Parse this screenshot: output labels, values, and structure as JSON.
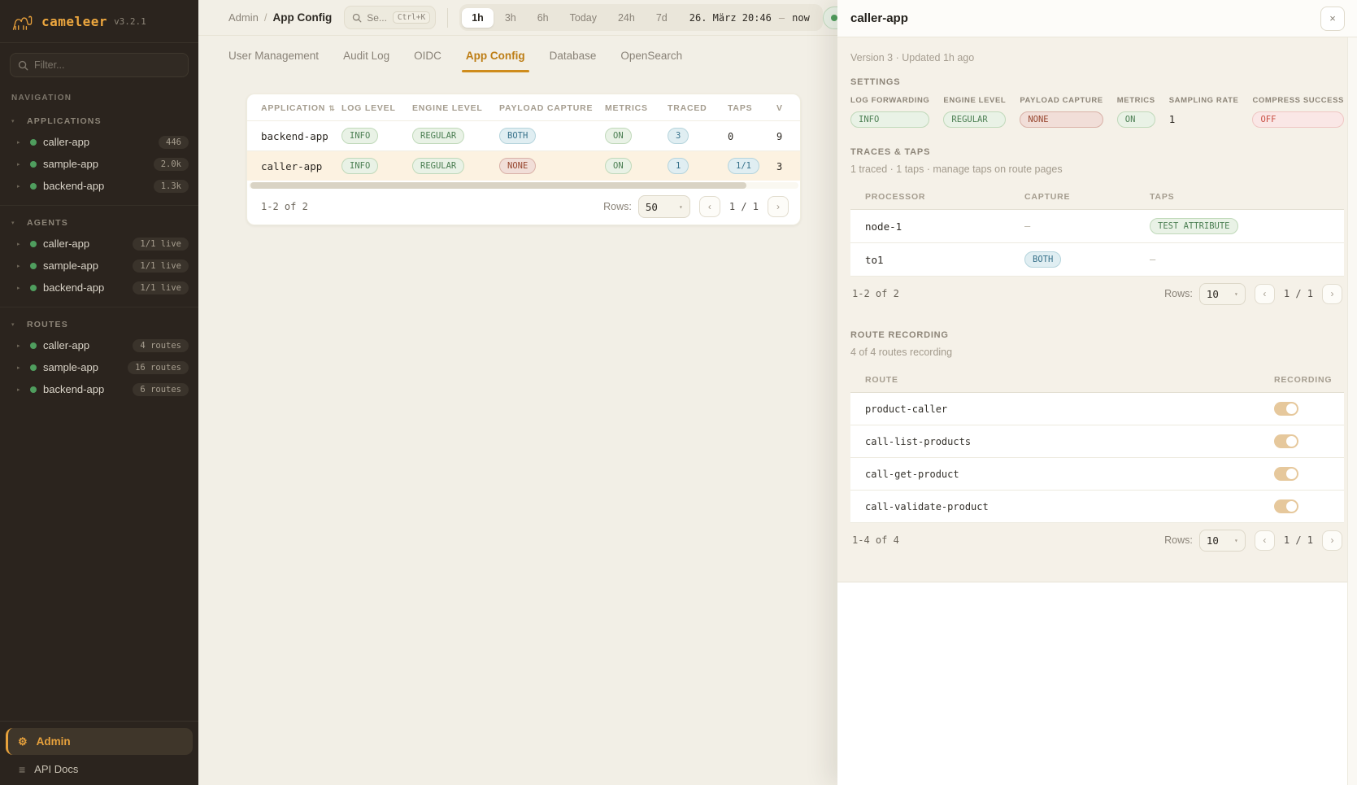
{
  "app": {
    "name": "cameleer",
    "version": "v3.2.1"
  },
  "icons": {
    "caret_down": "▾",
    "caret_right": "▸",
    "sort": "⇅",
    "gear": "⚙",
    "menu": "≡",
    "close": "×",
    "prev": "‹",
    "next": "›",
    "select_caret": "▾"
  },
  "sidebar": {
    "filter_placeholder": "Filter...",
    "nav_label": "NAVIGATION",
    "sections": [
      {
        "title": "APPLICATIONS",
        "items": [
          {
            "name": "caller-app",
            "badge": "446"
          },
          {
            "name": "sample-app",
            "badge": "2.0k"
          },
          {
            "name": "backend-app",
            "badge": "1.3k"
          }
        ]
      },
      {
        "title": "AGENTS",
        "items": [
          {
            "name": "caller-app",
            "badge": "1/1 live"
          },
          {
            "name": "sample-app",
            "badge": "1/1 live"
          },
          {
            "name": "backend-app",
            "badge": "1/1 live"
          }
        ]
      },
      {
        "title": "ROUTES",
        "items": [
          {
            "name": "caller-app",
            "badge": "4 routes"
          },
          {
            "name": "sample-app",
            "badge": "16 routes"
          },
          {
            "name": "backend-app",
            "badge": "6 routes"
          }
        ]
      }
    ],
    "footer": [
      {
        "label": "Admin",
        "active": true
      },
      {
        "label": "API Docs",
        "active": false
      }
    ]
  },
  "header": {
    "breadcrumb": [
      "Admin",
      "App Config"
    ],
    "search_placeholder": "Se...",
    "search_kbd": "Ctrl+K",
    "time_ranges": [
      {
        "label": "1h",
        "active": true
      },
      {
        "label": "3h",
        "active": false
      },
      {
        "label": "6h",
        "active": false
      },
      {
        "label": "Today",
        "active": false
      },
      {
        "label": "24h",
        "active": false
      },
      {
        "label": "7d",
        "active": false
      }
    ],
    "date_from": "26. März 20:46",
    "date_sep": "—",
    "date_to": "now"
  },
  "tabs": [
    {
      "label": "User Management",
      "active": false
    },
    {
      "label": "Audit Log",
      "active": false
    },
    {
      "label": "OIDC",
      "active": false
    },
    {
      "label": "App Config",
      "active": true
    },
    {
      "label": "Database",
      "active": false
    },
    {
      "label": "OpenSearch",
      "active": false
    }
  ],
  "apps_table": {
    "columns": [
      "APPLICATION",
      "LOG LEVEL",
      "ENGINE LEVEL",
      "PAYLOAD CAPTURE",
      "METRICS",
      "TRACED",
      "TAPS",
      "V"
    ],
    "rows": [
      {
        "selected": false,
        "cells": [
          {
            "t": "backend-app",
            "s": "name"
          },
          {
            "t": "INFO",
            "s": "green"
          },
          {
            "t": "REGULAR",
            "s": "green"
          },
          {
            "t": "BOTH",
            "s": "blue"
          },
          {
            "t": "ON",
            "s": "green"
          },
          {
            "t": "3",
            "s": "blue"
          },
          {
            "t": "0",
            "s": "plain"
          },
          {
            "t": "9",
            "s": "plain"
          }
        ]
      },
      {
        "selected": true,
        "cells": [
          {
            "t": "caller-app",
            "s": "name"
          },
          {
            "t": "INFO",
            "s": "green"
          },
          {
            "t": "REGULAR",
            "s": "green"
          },
          {
            "t": "NONE",
            "s": "red"
          },
          {
            "t": "ON",
            "s": "green"
          },
          {
            "t": "1",
            "s": "blue"
          },
          {
            "t": "1/1",
            "s": "blue"
          },
          {
            "t": "3",
            "s": "plain"
          }
        ]
      }
    ],
    "footer": {
      "range": "1-2 of 2",
      "rows_label": "Rows:",
      "rows_value": "50",
      "page": "1 / 1"
    }
  },
  "panel": {
    "title": "caller-app",
    "version_line": "Version 3 · Updated 1h ago",
    "settings": {
      "heading": "SETTINGS",
      "fields": [
        {
          "label": "LOG FORWARDING",
          "value": "INFO",
          "variant": "green"
        },
        {
          "label": "ENGINE LEVEL",
          "value": "REGULAR",
          "variant": "green"
        },
        {
          "label": "PAYLOAD CAPTURE",
          "value": "NONE",
          "variant": "red-muted"
        },
        {
          "label": "METRICS",
          "value": "ON",
          "variant": "green"
        },
        {
          "label": "SAMPLING RATE",
          "value": "1",
          "variant": "plain"
        },
        {
          "label": "COMPRESS SUCCESS",
          "value": "OFF",
          "variant": "red-bright"
        }
      ]
    },
    "traces": {
      "heading": "TRACES & TAPS",
      "note": "1 traced · 1 taps · manage taps on route pages",
      "columns": [
        "PROCESSOR",
        "CAPTURE",
        "TAPS"
      ],
      "rows": [
        {
          "cells": [
            {
              "t": "node-1",
              "s": "name"
            },
            {
              "t": "—",
              "s": "dash"
            },
            {
              "t": "TEST ATTRIBUTE",
              "s": "green"
            }
          ]
        },
        {
          "cells": [
            {
              "t": "to1",
              "s": "name"
            },
            {
              "t": "BOTH",
              "s": "blue"
            },
            {
              "t": "—",
              "s": "dash"
            }
          ]
        }
      ],
      "footer": {
        "range": "1-2 of 2",
        "rows_label": "Rows:",
        "rows_value": "10",
        "page": "1 / 1"
      }
    },
    "recording": {
      "heading": "ROUTE RECORDING",
      "note": "4 of 4 routes recording",
      "columns": [
        "ROUTE",
        "RECORDING"
      ],
      "routes": [
        {
          "name": "product-caller",
          "recording": true
        },
        {
          "name": "call-list-products",
          "recording": true
        },
        {
          "name": "call-get-product",
          "recording": true
        },
        {
          "name": "call-validate-product",
          "recording": true
        }
      ],
      "footer": {
        "range": "1-4 of 4",
        "rows_label": "Rows:",
        "rows_value": "10",
        "page": "1 / 1"
      }
    }
  },
  "colors": {
    "accent_orange": "#e8a23c",
    "tab_active": "#bd7d14",
    "sidebar_bg": "#2b241e",
    "green_text": "#4c7f53",
    "green_bg": "#e9f2e6",
    "blue_text": "#37718a",
    "blue_bg": "#e0eef2",
    "red_muted_text": "#97462f",
    "red_muted_bg": "#f1ded8",
    "red_bright_text": "#c94f43",
    "red_bright_bg": "#fae7e6",
    "toggle_on": "#e6c89c",
    "selected_row": "#fcf2e1",
    "live_dot": "#4f9e5e"
  }
}
